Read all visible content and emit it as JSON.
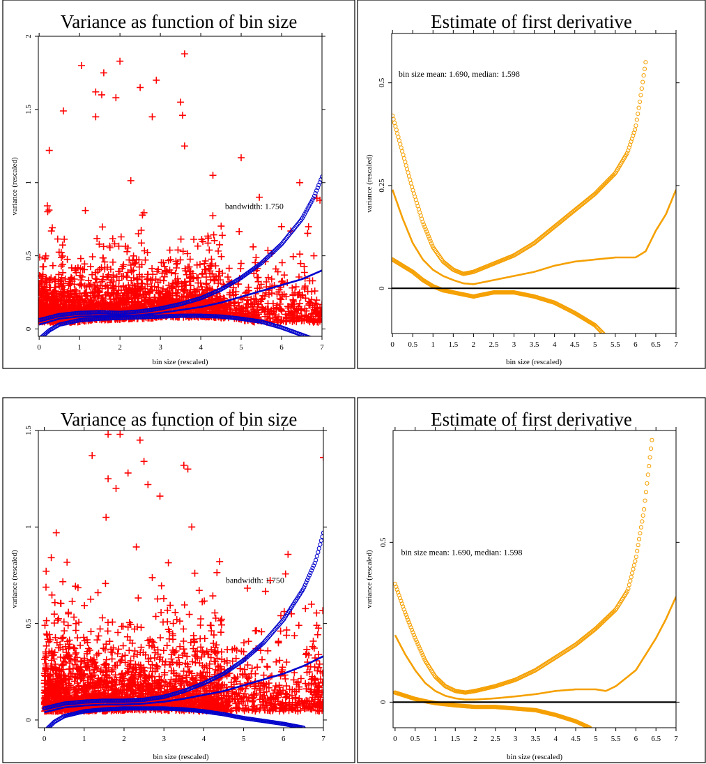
{
  "colors": {
    "scatter": "#ff0000",
    "smooth": "#0000cc",
    "derivative": "#f5a000",
    "frame": "#000000"
  },
  "chart_data": [
    {
      "id": "top-left",
      "type": "scatter",
      "title": "Variance as function of bin size",
      "xlabel": "bin size (rescaled)",
      "ylabel": "variance (rescaled)",
      "xlim": [
        -0.02,
        7
      ],
      "ylim": [
        -0.05,
        2
      ],
      "xticks": [
        "0",
        "1",
        "2",
        "3",
        "4",
        "5",
        "6",
        "7"
      ],
      "xtick_values": [
        0,
        1,
        2,
        3,
        4,
        5,
        6,
        7
      ],
      "yticks": [
        "0",
        "0.5",
        "1",
        "1.5",
        "2"
      ],
      "ytick_values": [
        0,
        0.5,
        1,
        1.5,
        2
      ],
      "annotation": "bandwidth: 1.750",
      "annotation_at": [
        4.6,
        0.82
      ],
      "scatter_seed": 11,
      "scatter_count": 2600,
      "outliers": [
        [
          1.05,
          1.8
        ],
        [
          1.6,
          1.75
        ],
        [
          2.0,
          1.83
        ],
        [
          3.6,
          1.88
        ],
        [
          1.4,
          1.62
        ],
        [
          1.55,
          1.6
        ],
        [
          1.9,
          1.58
        ],
        [
          2.5,
          1.65
        ],
        [
          2.9,
          1.7
        ],
        [
          0.6,
          1.49
        ],
        [
          3.5,
          1.55
        ],
        [
          3.55,
          1.46
        ],
        [
          1.4,
          1.45
        ],
        [
          2.8,
          1.45
        ],
        [
          3.6,
          1.25
        ],
        [
          5.0,
          1.17
        ],
        [
          0.25,
          1.22
        ],
        [
          4.3,
          1.05
        ],
        [
          5.45,
          0.9
        ],
        [
          6.45,
          1.0
        ],
        [
          6.95,
          0.88
        ],
        [
          6.8,
          0.5
        ]
      ],
      "series": [
        {
          "name": "",
          "role": "upper-band",
          "style": "circles",
          "x": [
            0,
            0.5,
            1,
            1.5,
            2,
            2.5,
            3,
            3.5,
            4,
            4.5,
            5,
            5.5,
            6,
            6.5,
            6.8,
            7
          ],
          "y": [
            0.06,
            0.095,
            0.11,
            0.115,
            0.11,
            0.12,
            0.14,
            0.17,
            0.21,
            0.27,
            0.35,
            0.45,
            0.58,
            0.75,
            0.9,
            1.04
          ]
        },
        {
          "name": "",
          "role": "fit",
          "style": "line",
          "x": [
            0,
            0.5,
            1,
            1.5,
            2,
            2.5,
            3,
            3.5,
            4,
            4.5,
            5,
            5.5,
            6,
            6.5,
            7
          ],
          "y": [
            0.03,
            0.07,
            0.085,
            0.09,
            0.09,
            0.095,
            0.11,
            0.13,
            0.15,
            0.18,
            0.22,
            0.26,
            0.3,
            0.34,
            0.4
          ]
        },
        {
          "name": "",
          "role": "lower-band",
          "style": "circles",
          "x": [
            0,
            0.25,
            0.5,
            1,
            1.5,
            2,
            2.5,
            3,
            3.5,
            4,
            4.5,
            5,
            5.5,
            6,
            6.5,
            6.9
          ],
          "y": [
            -0.07,
            -0.01,
            0.03,
            0.06,
            0.07,
            0.075,
            0.08,
            0.085,
            0.09,
            0.09,
            0.085,
            0.07,
            0.05,
            0.01,
            -0.04,
            -0.08
          ]
        }
      ]
    },
    {
      "id": "top-right",
      "type": "line",
      "title": "Estimate of first derivative",
      "xlabel": "bin size (rescaled)",
      "ylabel": "variance (rescaled)",
      "xlim": [
        -0.02,
        7
      ],
      "ylim": [
        -0.11,
        0.62
      ],
      "xticks": [
        "0",
        "0.5",
        "1",
        "1.5",
        "2",
        "2.5",
        "3",
        "3.5",
        "4",
        "4.5",
        "5",
        "5.5",
        "6",
        "6.5",
        "7"
      ],
      "xtick_values": [
        0,
        0.5,
        1,
        1.5,
        2,
        2.5,
        3,
        3.5,
        4,
        4.5,
        5,
        5.5,
        6,
        6.5,
        7
      ],
      "yticks": [
        "0",
        "0.25",
        "0.5"
      ],
      "ytick_values": [
        0,
        0.25,
        0.5
      ],
      "annotation": "bin size mean: 1.690, median: 1.598",
      "annotation_at": [
        0.15,
        0.515
      ],
      "zero_line": 0,
      "series": [
        {
          "name": "",
          "role": "upper-band",
          "style": "circles",
          "x": [
            0,
            0.25,
            0.5,
            0.75,
            1,
            1.25,
            1.5,
            1.75,
            2,
            2.5,
            3,
            3.5,
            4,
            4.5,
            5,
            5.5,
            5.8,
            6,
            6.1,
            6.25
          ],
          "y": [
            0.42,
            0.33,
            0.24,
            0.16,
            0.1,
            0.065,
            0.045,
            0.035,
            0.04,
            0.06,
            0.08,
            0.11,
            0.15,
            0.19,
            0.23,
            0.28,
            0.33,
            0.39,
            0.45,
            0.55
          ]
        },
        {
          "name": "",
          "role": "fit",
          "style": "line",
          "x": [
            0,
            0.25,
            0.5,
            0.75,
            1,
            1.25,
            1.5,
            1.75,
            2,
            2.5,
            3,
            3.5,
            4,
            4.5,
            5,
            5.5,
            6,
            6.25,
            6.5,
            6.75,
            7
          ],
          "y": [
            0.24,
            0.17,
            0.11,
            0.07,
            0.045,
            0.03,
            0.02,
            0.012,
            0.01,
            0.02,
            0.03,
            0.04,
            0.055,
            0.065,
            0.07,
            0.075,
            0.075,
            0.09,
            0.14,
            0.18,
            0.24
          ]
        },
        {
          "name": "",
          "role": "lower-band",
          "style": "circles",
          "x": [
            0,
            0.25,
            0.5,
            0.75,
            1,
            1.25,
            1.5,
            1.75,
            2,
            2.5,
            3,
            3.5,
            4,
            4.5,
            5,
            5.2
          ],
          "y": [
            0.07,
            0.055,
            0.04,
            0.02,
            0.005,
            -0.005,
            -0.01,
            -0.015,
            -0.02,
            -0.01,
            -0.01,
            -0.02,
            -0.035,
            -0.06,
            -0.09,
            -0.11
          ]
        }
      ]
    },
    {
      "id": "bottom-left",
      "type": "scatter",
      "title": "Variance as function of bin size",
      "xlabel": "bin size (rescaled)",
      "ylabel": "variance (rescaled)",
      "xlim": [
        -0.15,
        7
      ],
      "ylim": [
        -0.04,
        1.5
      ],
      "xticks": [
        "0",
        "1",
        "2",
        "3",
        "4",
        "5",
        "6",
        "7"
      ],
      "xtick_values": [
        0,
        1,
        2,
        3,
        4,
        5,
        6,
        7
      ],
      "yticks": [
        "0",
        "0.5",
        "1",
        "1.5"
      ],
      "ytick_values": [
        0,
        0.5,
        1,
        1.5
      ],
      "annotation": "bandwidth: 1.750",
      "annotation_at": [
        4.55,
        0.71
      ],
      "scatter_seed": 23,
      "scatter_count": 2600,
      "outliers": [
        [
          1.6,
          1.48
        ],
        [
          1.9,
          1.48
        ],
        [
          2.4,
          1.45
        ],
        [
          1.2,
          1.37
        ],
        [
          2.5,
          1.34
        ],
        [
          3.5,
          1.32
        ],
        [
          3.6,
          1.3
        ],
        [
          2.1,
          1.28
        ],
        [
          1.6,
          1.25
        ],
        [
          2.6,
          1.22
        ],
        [
          1.8,
          1.2
        ],
        [
          2.9,
          1.16
        ],
        [
          7.0,
          1.36
        ],
        [
          0.3,
          0.97
        ],
        [
          1.55,
          1.05
        ],
        [
          3.7,
          1.0
        ],
        [
          6.2,
          0.55
        ],
        [
          6.7,
          0.6
        ]
      ],
      "series": [
        {
          "name": "",
          "role": "upper-band",
          "style": "circles",
          "x": [
            0,
            0.5,
            1,
            1.5,
            2,
            2.5,
            3,
            3.5,
            4,
            4.5,
            5,
            5.5,
            6,
            6.5,
            6.8,
            7
          ],
          "y": [
            0.06,
            0.085,
            0.095,
            0.1,
            0.1,
            0.105,
            0.12,
            0.15,
            0.19,
            0.24,
            0.31,
            0.4,
            0.52,
            0.68,
            0.82,
            0.97
          ]
        },
        {
          "name": "",
          "role": "fit",
          "style": "line",
          "x": [
            0,
            0.5,
            1,
            1.5,
            2,
            2.5,
            3,
            3.5,
            4,
            4.5,
            5,
            5.5,
            6,
            6.5,
            7
          ],
          "y": [
            0.04,
            0.065,
            0.075,
            0.08,
            0.08,
            0.085,
            0.095,
            0.11,
            0.13,
            0.15,
            0.18,
            0.21,
            0.24,
            0.28,
            0.33
          ]
        },
        {
          "name": "",
          "role": "lower-band",
          "style": "circles",
          "x": [
            0,
            0.25,
            0.5,
            1,
            1.5,
            2,
            2.5,
            3,
            3.5,
            4,
            4.5,
            5,
            5.5,
            6,
            6.5
          ],
          "y": [
            -0.06,
            -0.01,
            0.02,
            0.045,
            0.055,
            0.06,
            0.06,
            0.06,
            0.055,
            0.045,
            0.03,
            0.01,
            -0.005,
            -0.02,
            -0.04
          ]
        }
      ]
    },
    {
      "id": "bottom-right",
      "type": "line",
      "title": "Estimate of first derivative",
      "xlabel": "bin size (rescaled)",
      "ylabel": "variance (rescaled)",
      "xlim": [
        -0.05,
        7
      ],
      "ylim": [
        -0.08,
        0.85
      ],
      "xticks": [
        "0",
        "0.5",
        "1",
        "1.5",
        "2",
        "2.5",
        "3",
        "3.5",
        "4",
        "4.5",
        "5",
        "5.5",
        "6",
        "6.5",
        "7"
      ],
      "xtick_values": [
        0,
        0.5,
        1,
        1.5,
        2,
        2.5,
        3,
        3.5,
        4,
        4.5,
        5,
        5.5,
        6,
        6.5,
        7
      ],
      "yticks": [
        "0",
        "0.5"
      ],
      "ytick_values": [
        0,
        0.5
      ],
      "annotation": "bin size mean: 1.690, median: 1.598",
      "annotation_at": [
        0.15,
        0.46
      ],
      "zero_line": 0,
      "series": [
        {
          "name": "",
          "role": "upper-band",
          "style": "circles",
          "x": [
            0,
            0.25,
            0.5,
            0.75,
            1,
            1.25,
            1.5,
            1.75,
            2,
            2.5,
            3,
            3.5,
            4,
            4.5,
            5,
            5.5,
            5.8,
            6,
            6.2,
            6.4
          ],
          "y": [
            0.37,
            0.28,
            0.2,
            0.13,
            0.08,
            0.05,
            0.035,
            0.03,
            0.035,
            0.05,
            0.07,
            0.1,
            0.14,
            0.18,
            0.23,
            0.29,
            0.35,
            0.45,
            0.6,
            0.82
          ]
        },
        {
          "name": "",
          "role": "fit",
          "style": "line",
          "x": [
            0,
            0.25,
            0.5,
            0.75,
            1,
            1.25,
            1.5,
            1.75,
            2,
            2.5,
            3,
            3.5,
            4,
            4.5,
            5,
            5.25,
            5.5,
            6,
            6.5,
            6.75,
            7
          ],
          "y": [
            0.21,
            0.15,
            0.1,
            0.06,
            0.035,
            0.02,
            0.012,
            0.008,
            0.008,
            0.012,
            0.018,
            0.025,
            0.035,
            0.04,
            0.04,
            0.035,
            0.05,
            0.1,
            0.2,
            0.26,
            0.33
          ]
        },
        {
          "name": "",
          "role": "lower-band",
          "style": "circles",
          "x": [
            0,
            0.25,
            0.5,
            0.75,
            1,
            1.5,
            2,
            2.5,
            3,
            3.5,
            4,
            4.5,
            4.85
          ],
          "y": [
            0.03,
            0.02,
            0.01,
            0.003,
            -0.003,
            -0.01,
            -0.015,
            -0.015,
            -0.02,
            -0.025,
            -0.04,
            -0.06,
            -0.08
          ]
        }
      ]
    }
  ]
}
